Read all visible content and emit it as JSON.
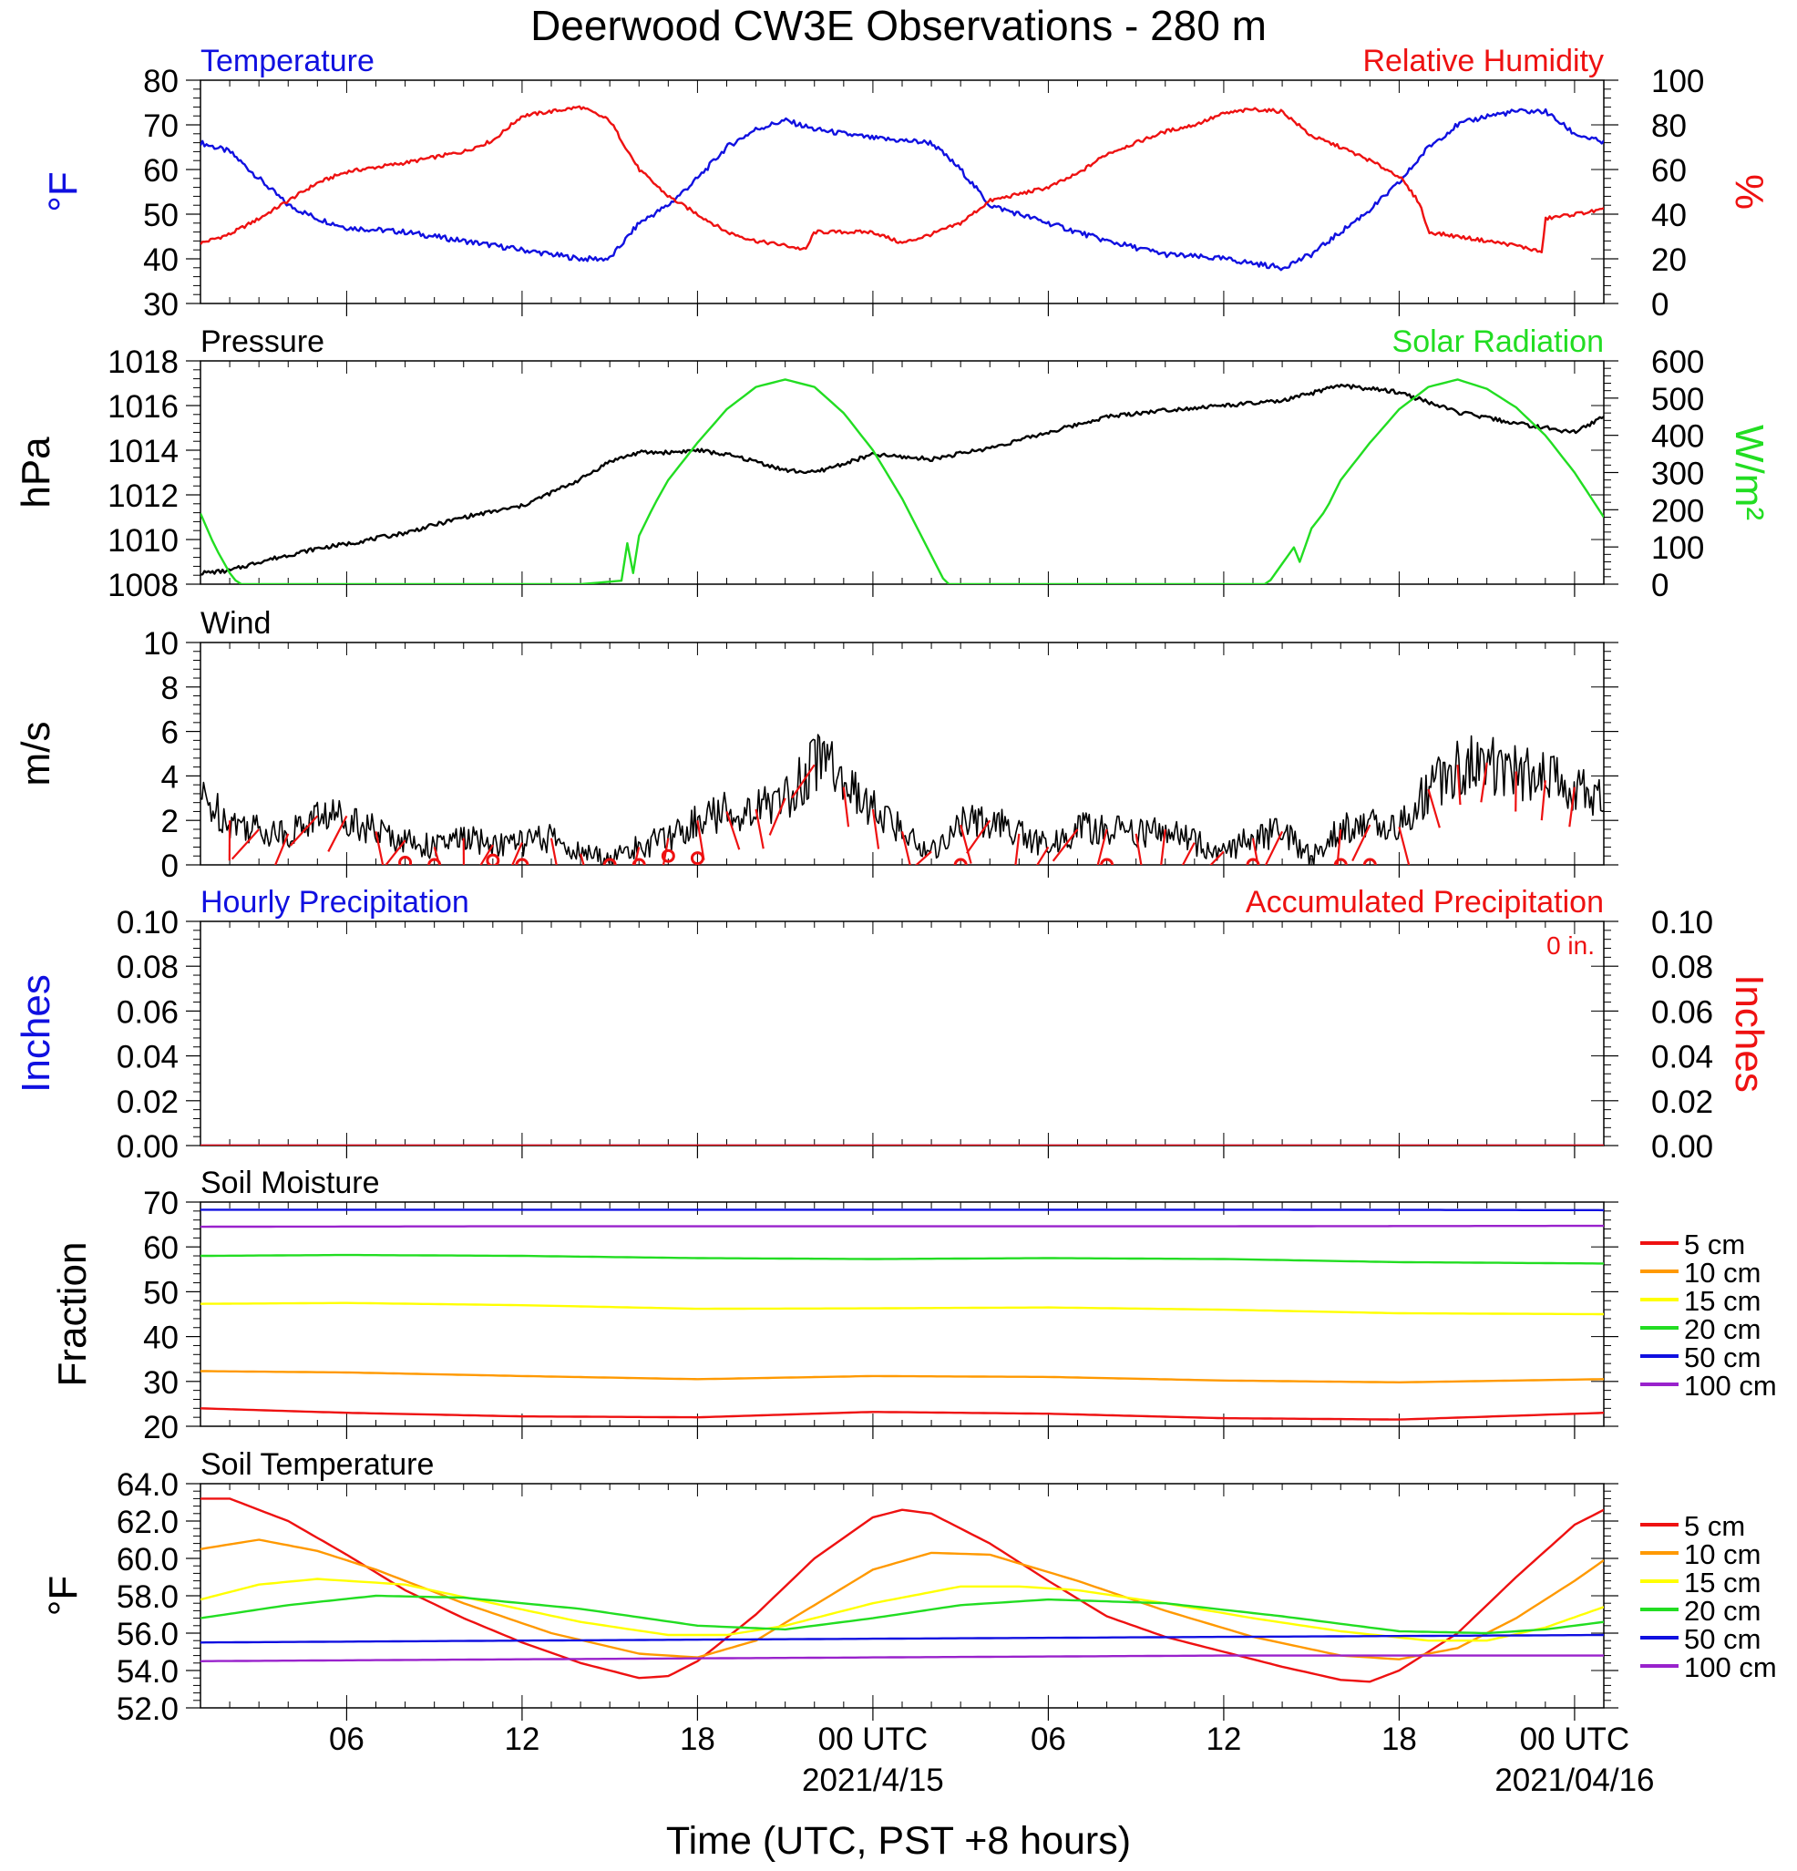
{
  "title": "Deerwood CW3E Observations - 280 m",
  "x_axis": {
    "label": "Time (UTC, PST +8 hours)",
    "ticks": [
      {
        "h": 6,
        "label": "06",
        "sub": ""
      },
      {
        "h": 12,
        "label": "12",
        "sub": ""
      },
      {
        "h": 18,
        "label": "18",
        "sub": ""
      },
      {
        "h": 24,
        "label": "00 UTC",
        "sub": "2021/4/15"
      },
      {
        "h": 30,
        "label": "06",
        "sub": ""
      },
      {
        "h": 36,
        "label": "12",
        "sub": ""
      },
      {
        "h": 42,
        "label": "18",
        "sub": ""
      },
      {
        "h": 48,
        "label": "00 UTC",
        "sub": "2021/04/16"
      }
    ],
    "range_hours": [
      1,
      49
    ]
  },
  "colors": {
    "blue": "#1010e0",
    "red": "#ee1111",
    "green": "#22dd22",
    "black": "#000000",
    "orange": "#ff9900",
    "yellow": "#ffff00",
    "purple": "#9922cc"
  },
  "chart_data": [
    {
      "type": "line",
      "title_left": "Temperature",
      "title_right": "Relative Humidity",
      "ylabel_left": "°F",
      "ylabel_right": "%",
      "ylim_left": [
        30,
        80
      ],
      "yticks_left": [
        "30",
        "40",
        "50",
        "60",
        "70",
        "80"
      ],
      "ylim_right": [
        0,
        100
      ],
      "yticks_right": [
        "0",
        "20",
        "40",
        "60",
        "80",
        "100"
      ],
      "series": [
        {
          "axis": "left",
          "color": "#1010e0",
          "x": [
            1,
            2,
            3,
            4,
            5,
            6,
            8,
            10,
            12,
            14,
            15,
            16,
            17,
            18,
            19,
            20,
            21,
            22,
            24,
            26,
            27,
            28,
            30,
            32,
            34,
            36,
            38,
            39,
            40,
            41,
            42,
            43,
            44,
            45,
            46,
            47,
            48,
            49
          ],
          "y": [
            66,
            64,
            58,
            52,
            49,
            47,
            46,
            44,
            42,
            40,
            40,
            48,
            52,
            58,
            65,
            69,
            71,
            69,
            67,
            66,
            60,
            52,
            48,
            44,
            41,
            40,
            38,
            41,
            46,
            51,
            57,
            65,
            70,
            72,
            73,
            73,
            68,
            66
          ]
        },
        {
          "axis": "right",
          "color": "#ee1111",
          "x": [
            1,
            2,
            3,
            4,
            5,
            6,
            8,
            10,
            11,
            12,
            14,
            15,
            16,
            17,
            18,
            19,
            20,
            21,
            21.7,
            22,
            24,
            25,
            26,
            27,
            28,
            30,
            31,
            32,
            34,
            35,
            36,
            37,
            38,
            39,
            40,
            41,
            42,
            42.7,
            43,
            44,
            45,
            46,
            46.9,
            47,
            48,
            49
          ],
          "y": [
            27,
            31,
            38,
            46,
            54,
            59,
            63,
            68,
            73,
            84,
            88,
            82,
            60,
            48,
            40,
            32,
            28,
            26,
            24,
            32,
            32,
            27,
            31,
            36,
            46,
            52,
            58,
            67,
            77,
            80,
            85,
            87,
            86,
            75,
            70,
            64,
            57,
            45,
            32,
            30,
            28,
            26,
            23,
            38,
            40,
            42
          ]
        }
      ]
    },
    {
      "type": "line",
      "title_left": "Pressure",
      "title_right": "Solar Radiation",
      "ylabel_left": "hPa",
      "ylabel_right": "W/m²",
      "ylim_left": [
        1008,
        1018
      ],
      "yticks_left": [
        "1008",
        "1010",
        "1012",
        "1014",
        "1016",
        "1018"
      ],
      "ylim_right": [
        0,
        600
      ],
      "yticks_right": [
        "0",
        "100",
        "200",
        "300",
        "400",
        "500",
        "600"
      ],
      "series": [
        {
          "axis": "left",
          "color": "#000000",
          "x": [
            1,
            2,
            3,
            4,
            5,
            6,
            8,
            10,
            12,
            14,
            15,
            16,
            17,
            18,
            19,
            20,
            21,
            22,
            24,
            26,
            28,
            30,
            32,
            34,
            36,
            38,
            40,
            42,
            44,
            46,
            48,
            49
          ],
          "y": [
            1008.5,
            1008.6,
            1009,
            1009.3,
            1009.6,
            1009.8,
            1010.3,
            1011,
            1011.5,
            1012.7,
            1013.5,
            1013.9,
            1013.9,
            1014,
            1013.8,
            1013.5,
            1013.1,
            1013,
            1013.8,
            1013.6,
            1014.1,
            1014.8,
            1015.5,
            1015.8,
            1016,
            1016.2,
            1016.9,
            1016.6,
            1015.7,
            1015.2,
            1014.8,
            1015.5
          ]
        },
        {
          "axis": "right",
          "color": "#22dd22",
          "x": [
            1,
            1.5,
            2,
            2.3,
            14,
            15.5,
            15.6,
            15.8,
            16,
            16.5,
            17,
            18,
            19,
            20,
            21,
            22,
            23,
            24,
            25,
            26.5,
            27,
            28,
            37.5,
            38.5,
            38.6,
            39,
            39.5,
            40,
            41,
            42,
            43,
            44,
            45,
            46,
            47,
            48,
            49
          ],
          "y": [
            190,
            100,
            30,
            0,
            0,
            10,
            110,
            30,
            130,
            210,
            280,
            380,
            470,
            530,
            550,
            530,
            460,
            360,
            230,
            0,
            0,
            0,
            0,
            110,
            60,
            150,
            200,
            280,
            380,
            470,
            530,
            550,
            525,
            475,
            400,
            300,
            180
          ]
        }
      ]
    },
    {
      "type": "line",
      "title_left": "Wind",
      "ylabel_left": "m/s",
      "ylim_left": [
        0,
        10
      ],
      "yticks_left": [
        "0",
        "2",
        "4",
        "6",
        "8",
        "10"
      ],
      "series": [
        {
          "color": "#000000",
          "x": [
            1,
            2,
            3,
            4,
            5,
            6,
            7,
            8,
            9,
            10,
            11,
            12,
            13,
            14,
            15,
            16,
            17,
            18,
            19,
            20,
            21,
            22,
            22.5,
            23,
            24,
            25,
            26,
            27,
            28,
            29,
            30,
            31,
            32,
            33,
            34,
            35,
            36,
            37,
            38,
            39,
            40,
            41,
            42,
            43,
            44,
            45,
            46,
            47,
            48,
            49
          ],
          "y": [
            3,
            2,
            1.6,
            1.4,
            2.2,
            2.2,
            1.5,
            1.1,
            0.8,
            1.2,
            0.9,
            1,
            1.2,
            0.5,
            0.3,
            0.8,
            1.2,
            2,
            2.4,
            2.5,
            3,
            4.5,
            5.2,
            3.5,
            2.5,
            1.5,
            0.6,
            1.8,
            2,
            1.4,
            0.8,
            1.6,
            1.6,
            1.4,
            1.6,
            1,
            0.6,
            1.2,
            1.5,
            0.3,
            1.6,
            1.8,
            1.7,
            3.4,
            4.5,
            4.6,
            4.2,
            3.8,
            3.5,
            3
          ]
        },
        {
          "color": "#ee1111",
          "marker": "circle",
          "x": [
            8,
            9,
            11,
            12,
            15,
            16,
            17,
            18,
            27,
            32,
            37,
            40,
            41
          ],
          "y": [
            0.1,
            0,
            0.2,
            0,
            0,
            0,
            0.4,
            0.3,
            0,
            0,
            0,
            0,
            0
          ]
        }
      ]
    },
    {
      "type": "line",
      "title_left": "Hourly Precipitation",
      "title_right": "Accumulated Precipitation",
      "annotation": "0 in.",
      "ylabel_left": "Inches",
      "ylabel_right": "Inches",
      "ylim_left": [
        0,
        0.1
      ],
      "yticks_left": [
        "0.00",
        "0.02",
        "0.04",
        "0.06",
        "0.08",
        "0.10"
      ],
      "ylim_right": [
        0,
        0.1
      ],
      "yticks_right": [
        "0.00",
        "0.02",
        "0.04",
        "0.06",
        "0.08",
        "0.10"
      ],
      "series": [
        {
          "axis": "left",
          "color": "#1010e0",
          "x": [
            1,
            49
          ],
          "y": [
            0,
            0
          ]
        },
        {
          "axis": "right",
          "color": "#ee1111",
          "x": [
            1,
            49
          ],
          "y": [
            0,
            0
          ]
        }
      ]
    },
    {
      "type": "line",
      "title_left": "Soil Moisture",
      "ylabel_left": "Fraction",
      "ylim_left": [
        20,
        70
      ],
      "yticks_left": [
        "20",
        "30",
        "40",
        "50",
        "60",
        "70"
      ],
      "series": [
        {
          "name": "5 cm",
          "color": "#ee1111",
          "x": [
            1,
            6,
            12,
            18,
            24,
            30,
            36,
            42,
            49
          ],
          "y": [
            24,
            23,
            22.2,
            22,
            23.2,
            22.8,
            21.8,
            21.5,
            23
          ]
        },
        {
          "name": "10 cm",
          "color": "#ff9900",
          "x": [
            1,
            6,
            12,
            18,
            24,
            30,
            36,
            42,
            49
          ],
          "y": [
            32.3,
            32,
            31.2,
            30.5,
            31.2,
            31,
            30.2,
            29.8,
            30.5
          ]
        },
        {
          "name": "15 cm",
          "color": "#ffff00",
          "x": [
            1,
            6,
            12,
            18,
            24,
            30,
            36,
            42,
            49
          ],
          "y": [
            47.3,
            47.5,
            47,
            46.2,
            46.3,
            46.5,
            46,
            45.2,
            45
          ]
        },
        {
          "name": "20 cm",
          "color": "#22dd22",
          "x": [
            1,
            6,
            12,
            18,
            24,
            30,
            36,
            42,
            49
          ],
          "y": [
            58,
            58.2,
            58,
            57.5,
            57.3,
            57.5,
            57.3,
            56.6,
            56.3
          ]
        },
        {
          "name": "50 cm",
          "color": "#1010e0",
          "x": [
            1,
            12,
            24,
            36,
            49
          ],
          "y": [
            68.3,
            68.3,
            68.3,
            68.3,
            68.2
          ]
        },
        {
          "name": "100 cm",
          "color": "#9922cc",
          "x": [
            1,
            12,
            24,
            36,
            49
          ],
          "y": [
            64.5,
            64.6,
            64.6,
            64.6,
            64.7
          ]
        }
      ]
    },
    {
      "type": "line",
      "title_left": "Soil Temperature",
      "ylabel_left": "°F",
      "ylim_left": [
        52,
        64
      ],
      "yticks_left": [
        "52.0",
        "54.0",
        "56.0",
        "58.0",
        "60.0",
        "62.0",
        "64.0"
      ],
      "series": [
        {
          "name": "5 cm",
          "color": "#ee1111",
          "x": [
            1,
            2,
            4,
            6,
            8,
            10,
            12,
            14,
            16,
            17,
            18,
            20,
            22,
            24,
            25,
            26,
            28,
            30,
            32,
            34,
            36,
            38,
            40,
            41,
            42,
            44,
            46,
            48,
            49
          ],
          "y": [
            63.2,
            63.2,
            62,
            60.2,
            58.3,
            56.8,
            55.5,
            54.4,
            53.6,
            53.7,
            54.5,
            57,
            60,
            62.2,
            62.6,
            62.4,
            60.8,
            58.8,
            56.9,
            55.8,
            55,
            54.2,
            53.5,
            53.4,
            54,
            56,
            59,
            61.8,
            62.6
          ]
        },
        {
          "name": "10 cm",
          "color": "#ff9900",
          "x": [
            1,
            3,
            5,
            7,
            10,
            13,
            16,
            18,
            20,
            22,
            24,
            26,
            28,
            31,
            34,
            37,
            40,
            42,
            44,
            46,
            48,
            49
          ],
          "y": [
            60.5,
            61,
            60.4,
            59.4,
            57.6,
            56,
            54.9,
            54.7,
            55.6,
            57.5,
            59.4,
            60.3,
            60.2,
            58.8,
            57.2,
            55.8,
            54.8,
            54.6,
            55.2,
            56.8,
            58.8,
            59.9
          ]
        },
        {
          "name": "15 cm",
          "color": "#ffff00",
          "x": [
            1,
            3,
            5,
            8,
            11,
            14,
            17,
            19,
            21,
            24,
            27,
            29,
            31,
            34,
            37,
            40,
            43,
            45,
            47,
            49
          ],
          "y": [
            57.8,
            58.6,
            58.9,
            58.6,
            57.6,
            56.6,
            55.9,
            55.9,
            56.4,
            57.6,
            58.5,
            58.5,
            58.3,
            57.6,
            56.8,
            56.1,
            55.6,
            55.6,
            56.3,
            57.4
          ]
        },
        {
          "name": "20 cm",
          "color": "#22dd22",
          "x": [
            1,
            4,
            7,
            10,
            14,
            18,
            21,
            24,
            27,
            30,
            34,
            38,
            42,
            45,
            47,
            49
          ],
          "y": [
            56.8,
            57.5,
            58,
            57.9,
            57.3,
            56.4,
            56.2,
            56.8,
            57.5,
            57.8,
            57.6,
            56.9,
            56.1,
            56,
            56.2,
            56.6
          ]
        },
        {
          "name": "50 cm",
          "color": "#1010e0",
          "x": [
            1,
            12,
            24,
            36,
            49
          ],
          "y": [
            55.5,
            55.6,
            55.7,
            55.8,
            55.9
          ]
        },
        {
          "name": "100 cm",
          "color": "#9922cc",
          "x": [
            1,
            12,
            24,
            36,
            49
          ],
          "y": [
            54.5,
            54.6,
            54.7,
            54.8,
            54.8
          ]
        }
      ]
    }
  ]
}
